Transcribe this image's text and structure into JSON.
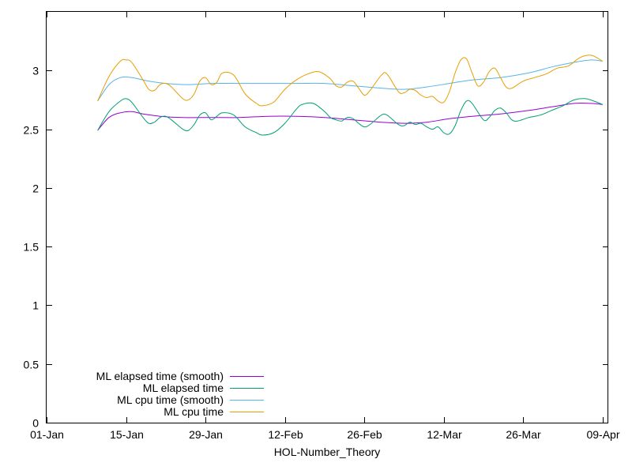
{
  "chart_data": {
    "type": "line",
    "title": "",
    "xlabel": "HOL-Number_Theory",
    "ylabel": "",
    "xlim": [
      "2024-01-01",
      "2024-04-09"
    ],
    "ylim": [
      0,
      3.5
    ],
    "x_ticks": [
      "01-Jan",
      "15-Jan",
      "29-Jan",
      "12-Feb",
      "26-Feb",
      "12-Mar",
      "26-Mar",
      "09-Apr"
    ],
    "y_ticks": [
      "0",
      "0.5",
      "1",
      "1.5",
      "2",
      "2.5",
      "3"
    ],
    "grid": false,
    "legend_position": "bottom-left",
    "series": [
      {
        "name": "ML elapsed time (smooth)",
        "color": "#9400d3",
        "points": [
          [
            "2024-01-10",
            2.49
          ],
          [
            "2024-01-12",
            2.6
          ],
          [
            "2024-01-14",
            2.64
          ],
          [
            "2024-01-16",
            2.65
          ],
          [
            "2024-01-18",
            2.63
          ],
          [
            "2024-01-21",
            2.61
          ],
          [
            "2024-01-25",
            2.6
          ],
          [
            "2024-01-30",
            2.6
          ],
          [
            "2024-02-04",
            2.6
          ],
          [
            "2024-02-09",
            2.61
          ],
          [
            "2024-02-14",
            2.61
          ],
          [
            "2024-02-19",
            2.6
          ],
          [
            "2024-02-24",
            2.58
          ],
          [
            "2024-02-29",
            2.56
          ],
          [
            "2024-03-04",
            2.55
          ],
          [
            "2024-03-08",
            2.56
          ],
          [
            "2024-03-12",
            2.59
          ],
          [
            "2024-03-16",
            2.61
          ],
          [
            "2024-03-21",
            2.63
          ],
          [
            "2024-03-26",
            2.66
          ],
          [
            "2024-03-30",
            2.69
          ],
          [
            "2024-04-03",
            2.72
          ],
          [
            "2024-04-06",
            2.72
          ],
          [
            "2024-04-08",
            2.71
          ]
        ]
      },
      {
        "name": "ML elapsed time",
        "color": "#009e73",
        "points": [
          [
            "2024-01-10",
            2.49
          ],
          [
            "2024-01-12",
            2.65
          ],
          [
            "2024-01-14",
            2.74
          ],
          [
            "2024-01-15",
            2.76
          ],
          [
            "2024-01-16",
            2.73
          ],
          [
            "2024-01-18",
            2.6
          ],
          [
            "2024-01-19",
            2.55
          ],
          [
            "2024-01-20",
            2.56
          ],
          [
            "2024-01-21",
            2.6
          ],
          [
            "2024-01-22",
            2.61
          ],
          [
            "2024-01-23",
            2.58
          ],
          [
            "2024-01-25",
            2.5
          ],
          [
            "2024-01-26",
            2.49
          ],
          [
            "2024-01-27",
            2.54
          ],
          [
            "2024-01-28",
            2.62
          ],
          [
            "2024-01-29",
            2.64
          ],
          [
            "2024-01-30",
            2.58
          ],
          [
            "2024-01-31",
            2.61
          ],
          [
            "2024-02-01",
            2.64
          ],
          [
            "2024-02-03",
            2.62
          ],
          [
            "2024-02-05",
            2.52
          ],
          [
            "2024-02-07",
            2.47
          ],
          [
            "2024-02-08",
            2.45
          ],
          [
            "2024-02-10",
            2.47
          ],
          [
            "2024-02-12",
            2.55
          ],
          [
            "2024-02-14",
            2.67
          ],
          [
            "2024-02-15",
            2.71
          ],
          [
            "2024-02-17",
            2.72
          ],
          [
            "2024-02-19",
            2.65
          ],
          [
            "2024-02-20",
            2.6
          ],
          [
            "2024-02-21",
            2.58
          ],
          [
            "2024-02-22",
            2.57
          ],
          [
            "2024-02-23",
            2.6
          ],
          [
            "2024-02-24",
            2.59
          ],
          [
            "2024-02-25",
            2.55
          ],
          [
            "2024-02-26",
            2.52
          ],
          [
            "2024-02-27",
            2.54
          ],
          [
            "2024-02-29",
            2.62
          ],
          [
            "2024-03-01",
            2.62
          ],
          [
            "2024-03-03",
            2.54
          ],
          [
            "2024-03-04",
            2.53
          ],
          [
            "2024-03-05",
            2.56
          ],
          [
            "2024-03-06",
            2.54
          ],
          [
            "2024-03-07",
            2.55
          ],
          [
            "2024-03-08",
            2.52
          ],
          [
            "2024-03-09",
            2.5
          ],
          [
            "2024-03-10",
            2.52
          ],
          [
            "2024-03-11",
            2.47
          ],
          [
            "2024-03-12",
            2.46
          ],
          [
            "2024-03-13",
            2.53
          ],
          [
            "2024-03-14",
            2.66
          ],
          [
            "2024-03-15",
            2.74
          ],
          [
            "2024-03-16",
            2.72
          ],
          [
            "2024-03-18",
            2.58
          ],
          [
            "2024-03-19",
            2.6
          ],
          [
            "2024-03-20",
            2.66
          ],
          [
            "2024-03-21",
            2.68
          ],
          [
            "2024-03-22",
            2.64
          ],
          [
            "2024-03-23",
            2.58
          ],
          [
            "2024-03-24",
            2.57
          ],
          [
            "2024-03-26",
            2.6
          ],
          [
            "2024-03-28",
            2.62
          ],
          [
            "2024-03-30",
            2.66
          ],
          [
            "2024-04-01",
            2.7
          ],
          [
            "2024-04-03",
            2.75
          ],
          [
            "2024-04-05",
            2.76
          ],
          [
            "2024-04-07",
            2.73
          ],
          [
            "2024-04-08",
            2.71
          ]
        ]
      },
      {
        "name": "ML cpu time (smooth)",
        "color": "#56b4e9",
        "points": [
          [
            "2024-01-10",
            2.74
          ],
          [
            "2024-01-12",
            2.88
          ],
          [
            "2024-01-14",
            2.94
          ],
          [
            "2024-01-16",
            2.94
          ],
          [
            "2024-01-19",
            2.91
          ],
          [
            "2024-01-22",
            2.89
          ],
          [
            "2024-01-26",
            2.88
          ],
          [
            "2024-01-30",
            2.89
          ],
          [
            "2024-02-04",
            2.89
          ],
          [
            "2024-02-09",
            2.89
          ],
          [
            "2024-02-14",
            2.89
          ],
          [
            "2024-02-19",
            2.89
          ],
          [
            "2024-02-24",
            2.87
          ],
          [
            "2024-02-29",
            2.85
          ],
          [
            "2024-03-04",
            2.84
          ],
          [
            "2024-03-08",
            2.86
          ],
          [
            "2024-03-12",
            2.89
          ],
          [
            "2024-03-16",
            2.92
          ],
          [
            "2024-03-21",
            2.94
          ],
          [
            "2024-03-26",
            2.98
          ],
          [
            "2024-03-30",
            3.03
          ],
          [
            "2024-04-03",
            3.07
          ],
          [
            "2024-04-06",
            3.09
          ],
          [
            "2024-04-08",
            3.08
          ]
        ]
      },
      {
        "name": "ML cpu time",
        "color": "#e69f00",
        "points": [
          [
            "2024-01-10",
            2.74
          ],
          [
            "2024-01-12",
            2.95
          ],
          [
            "2024-01-14",
            3.08
          ],
          [
            "2024-01-15",
            3.09
          ],
          [
            "2024-01-16",
            3.07
          ],
          [
            "2024-01-18",
            2.92
          ],
          [
            "2024-01-19",
            2.84
          ],
          [
            "2024-01-20",
            2.83
          ],
          [
            "2024-01-21",
            2.88
          ],
          [
            "2024-01-22",
            2.89
          ],
          [
            "2024-01-23",
            2.86
          ],
          [
            "2024-01-25",
            2.76
          ],
          [
            "2024-01-26",
            2.75
          ],
          [
            "2024-01-27",
            2.8
          ],
          [
            "2024-01-28",
            2.91
          ],
          [
            "2024-01-29",
            2.94
          ],
          [
            "2024-01-30",
            2.88
          ],
          [
            "2024-01-31",
            2.9
          ],
          [
            "2024-02-01",
            2.98
          ],
          [
            "2024-02-03",
            2.96
          ],
          [
            "2024-02-05",
            2.8
          ],
          [
            "2024-02-07",
            2.72
          ],
          [
            "2024-02-08",
            2.7
          ],
          [
            "2024-02-10",
            2.73
          ],
          [
            "2024-02-12",
            2.84
          ],
          [
            "2024-02-14",
            2.92
          ],
          [
            "2024-02-16",
            2.97
          ],
          [
            "2024-02-18",
            2.99
          ],
          [
            "2024-02-20",
            2.93
          ],
          [
            "2024-02-21",
            2.87
          ],
          [
            "2024-02-22",
            2.86
          ],
          [
            "2024-02-23",
            2.9
          ],
          [
            "2024-02-24",
            2.91
          ],
          [
            "2024-02-25",
            2.85
          ],
          [
            "2024-02-26",
            2.79
          ],
          [
            "2024-02-27",
            2.83
          ],
          [
            "2024-02-29",
            2.96
          ],
          [
            "2024-03-01",
            2.97
          ],
          [
            "2024-03-03",
            2.82
          ],
          [
            "2024-03-04",
            2.81
          ],
          [
            "2024-03-05",
            2.84
          ],
          [
            "2024-03-06",
            2.83
          ],
          [
            "2024-03-07",
            2.79
          ],
          [
            "2024-03-08",
            2.77
          ],
          [
            "2024-03-09",
            2.78
          ],
          [
            "2024-03-10",
            2.74
          ],
          [
            "2024-03-11",
            2.73
          ],
          [
            "2024-03-12",
            2.82
          ],
          [
            "2024-03-13",
            2.98
          ],
          [
            "2024-03-14",
            3.09
          ],
          [
            "2024-03-15",
            3.1
          ],
          [
            "2024-03-16",
            2.98
          ],
          [
            "2024-03-17",
            2.87
          ],
          [
            "2024-03-18",
            2.9
          ],
          [
            "2024-03-19",
            2.99
          ],
          [
            "2024-03-20",
            3.02
          ],
          [
            "2024-03-21",
            2.94
          ],
          [
            "2024-03-22",
            2.86
          ],
          [
            "2024-03-23",
            2.85
          ],
          [
            "2024-03-25",
            2.91
          ],
          [
            "2024-03-27",
            2.94
          ],
          [
            "2024-03-29",
            2.97
          ],
          [
            "2024-03-31",
            3.02
          ],
          [
            "2024-04-02",
            3.04
          ],
          [
            "2024-04-04",
            3.11
          ],
          [
            "2024-04-06",
            3.13
          ],
          [
            "2024-04-08",
            3.08
          ]
        ]
      }
    ]
  }
}
